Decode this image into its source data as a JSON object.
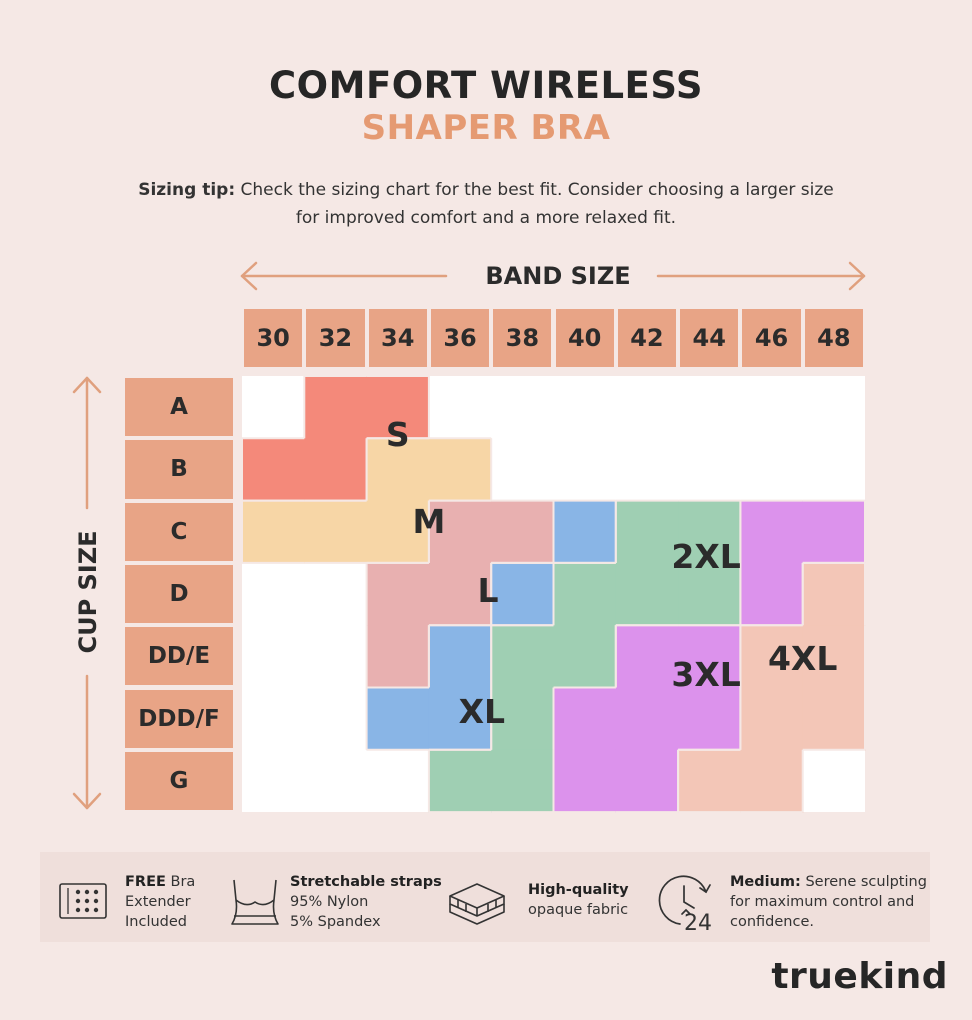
{
  "title_line1": "COMFORT WIRELESS",
  "title_line2": "SHAPER BRA",
  "sizing_tip": {
    "label": "Sizing tip:",
    "text_line1": " Check the sizing chart for the best fit. Consider choosing a larger size",
    "text_line2": "for improved comfort and a more relaxed fit."
  },
  "chart_data": {
    "type": "table",
    "x_axis_title": "BAND SIZE",
    "y_axis_title": "CUP SIZE",
    "band_sizes": [
      "30",
      "32",
      "34",
      "36",
      "38",
      "40",
      "42",
      "44",
      "46",
      "48"
    ],
    "cup_sizes": [
      "A",
      "B",
      "C",
      "D",
      "DD/E",
      "DDD/F",
      "G"
    ],
    "regions": [
      {
        "size": "S",
        "color": "#f4897a",
        "cells": [
          [
            "A",
            "32"
          ],
          [
            "A",
            "34"
          ],
          [
            "B",
            "30"
          ],
          [
            "B",
            "32"
          ]
        ]
      },
      {
        "size": "M",
        "color": "#f7d6a6",
        "cells": [
          [
            "B",
            "34"
          ],
          [
            "B",
            "36"
          ],
          [
            "C",
            "30"
          ],
          [
            "C",
            "32"
          ],
          [
            "C",
            "34"
          ]
        ]
      },
      {
        "size": "L",
        "color": "#e8b0b0",
        "cells": [
          [
            "C",
            "36"
          ],
          [
            "C",
            "38"
          ],
          [
            "D",
            "34"
          ],
          [
            "D",
            "36"
          ],
          [
            "DD/E",
            "34"
          ]
        ]
      },
      {
        "size": "XL",
        "color": "#89b5e6",
        "cells": [
          [
            "C",
            "40"
          ],
          [
            "D",
            "38"
          ],
          [
            "DD/E",
            "36"
          ],
          [
            "DDD/F",
            "34"
          ],
          [
            "DDD/F",
            "36"
          ]
        ]
      },
      {
        "size": "2XL",
        "color": "#9fcfb3",
        "cells": [
          [
            "C",
            "42"
          ],
          [
            "C",
            "44"
          ],
          [
            "D",
            "40"
          ],
          [
            "D",
            "42"
          ],
          [
            "D",
            "44"
          ],
          [
            "DD/E",
            "38"
          ],
          [
            "DD/E",
            "40"
          ],
          [
            "DDD/F",
            "38"
          ],
          [
            "G",
            "36"
          ],
          [
            "G",
            "38"
          ]
        ]
      },
      {
        "size": "3XL",
        "color": "#dc92ec",
        "cells": [
          [
            "C",
            "46"
          ],
          [
            "C",
            "48"
          ],
          [
            "D",
            "46"
          ],
          [
            "DD/E",
            "42"
          ],
          [
            "DD/E",
            "44"
          ],
          [
            "DDD/F",
            "40"
          ],
          [
            "DDD/F",
            "42"
          ],
          [
            "DDD/F",
            "44"
          ],
          [
            "G",
            "40"
          ],
          [
            "G",
            "42"
          ]
        ]
      },
      {
        "size": "4XL",
        "color": "#f3c6b7",
        "cells": [
          [
            "D",
            "48"
          ],
          [
            "DD/E",
            "46"
          ],
          [
            "DD/E",
            "48"
          ],
          [
            "DDD/F",
            "46"
          ],
          [
            "DDD/F",
            "48"
          ],
          [
            "G",
            "44"
          ],
          [
            "G",
            "46"
          ]
        ]
      }
    ]
  },
  "features": [
    {
      "icon": "hook-eye-extender-icon",
      "bold": "FREE",
      "text1": " Bra",
      "text2": "Extender",
      "text3": "Included"
    },
    {
      "icon": "bra-outline-icon",
      "bold": "Stretchable straps",
      "text1": "",
      "text2": "95% Nylon",
      "text3": "5% Spandex"
    },
    {
      "icon": "fabric-layers-icon",
      "bold": "High-quality",
      "text1": "",
      "text2": "opaque fabric",
      "text3": ""
    },
    {
      "icon": "24-hour-clock-icon",
      "bold": "Medium:",
      "text1": " Serene sculpting",
      "text2": "for maximum control and",
      "text3": "confidence."
    }
  ],
  "clock_icon_text": "24",
  "brand": "truekind"
}
